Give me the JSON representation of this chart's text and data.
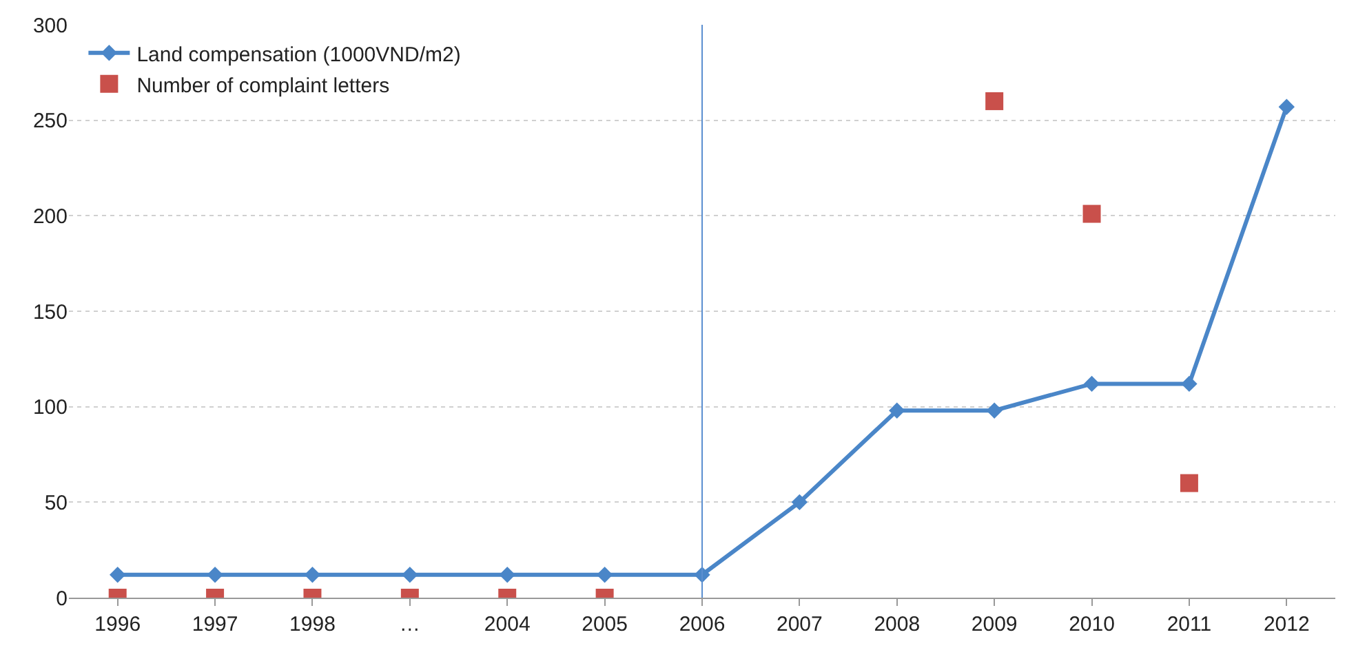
{
  "chart_data": {
    "type": "line",
    "categories": [
      "1996",
      "1997",
      "1998",
      "…",
      "2004",
      "2005",
      "2006",
      "2007",
      "2008",
      "2009",
      "2010",
      "2011",
      "2012"
    ],
    "series": [
      {
        "name": "Land compensation (1000VND/m2)",
        "color": "#4a86c8",
        "marker": "diamond",
        "line_style": "solid",
        "values": [
          12,
          12,
          12,
          12,
          12,
          12,
          12,
          50,
          98,
          98,
          112,
          112,
          257
        ]
      },
      {
        "name": "Number of complaint letters",
        "type": "scatter",
        "color": "#c9504b",
        "marker": "square",
        "values": [
          0,
          0,
          0,
          0,
          0,
          0,
          null,
          null,
          null,
          260,
          201,
          60,
          null
        ]
      }
    ],
    "ylim": [
      0,
      300
    ],
    "yticks": [
      0,
      50,
      100,
      150,
      200,
      250,
      300
    ],
    "grid": "y",
    "legend": "top left",
    "ref_lines": [
      {
        "axis": "x",
        "value": "2006",
        "color": "#5b8fd0"
      }
    ]
  }
}
